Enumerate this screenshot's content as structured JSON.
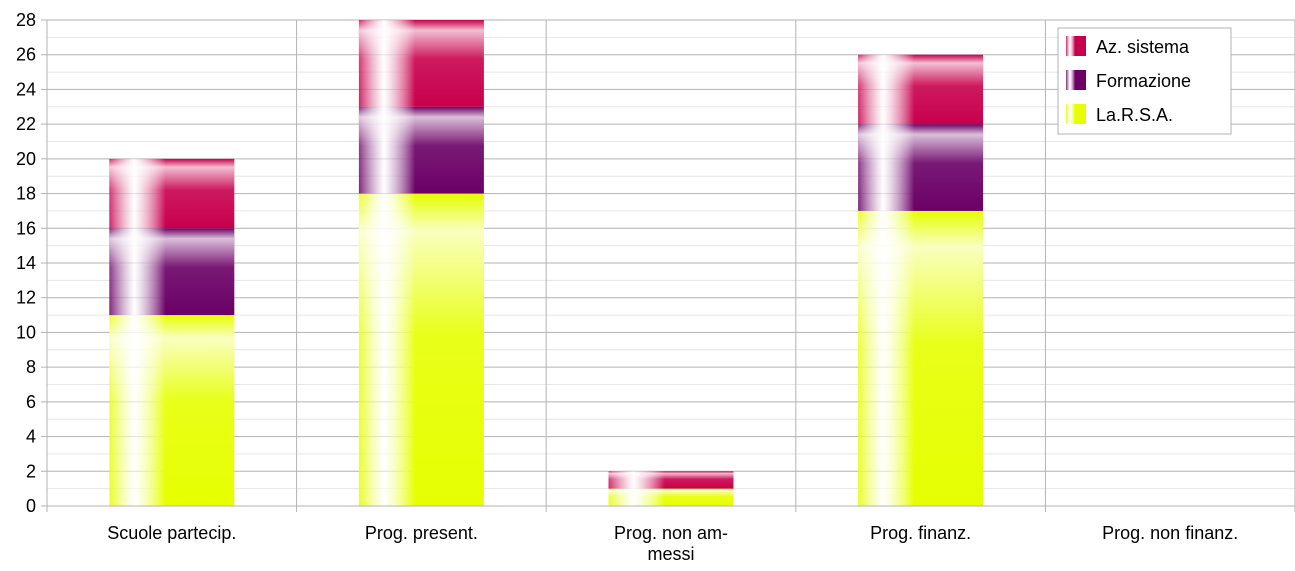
{
  "chart_data": {
    "type": "bar",
    "stacked": true,
    "categories": [
      [
        "Scuole partecip."
      ],
      [
        "Prog. present."
      ],
      [
        "Prog. non am-",
        "messi"
      ],
      [
        "Prog. finanz."
      ],
      [
        "Prog. non finanz."
      ]
    ],
    "series": [
      {
        "name": "La.R.S.A.",
        "color": "#e6ff00",
        "values": [
          11,
          18,
          1,
          17,
          0
        ]
      },
      {
        "name": "Formazione",
        "color": "#6b0066",
        "values": [
          5,
          5,
          0,
          5,
          0
        ]
      },
      {
        "name": "Az. sistema",
        "color": "#c8004c",
        "values": [
          4,
          5,
          1,
          4,
          0
        ]
      }
    ],
    "legend_order": [
      "Az. sistema",
      "Formazione",
      "La.R.S.A."
    ],
    "yticks": [
      0,
      2,
      4,
      6,
      8,
      10,
      12,
      14,
      16,
      18,
      20,
      22,
      24,
      26,
      28
    ],
    "ylim": [
      0,
      28
    ],
    "grid": true,
    "legend_position": "top-right"
  }
}
